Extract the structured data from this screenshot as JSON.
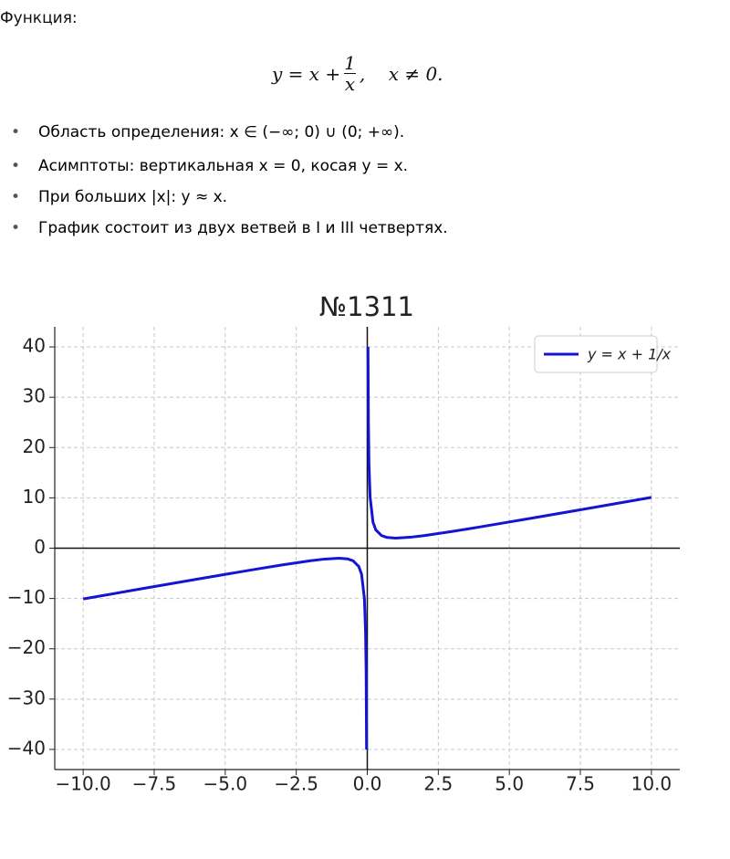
{
  "header": {
    "title": "Функция:"
  },
  "formula": {
    "lhs": "y = x +",
    "numerator": "1",
    "denominator": "x",
    "rest": ",    x ≠ 0."
  },
  "bullets": [
    "Область определения: x ∈ (−∞; 0) ∪ (0; +∞).",
    "Асимптоты: вертикальная x = 0, косая y = x.",
    "При больших |x|: y ≈ x.",
    "График состоит из двух ветвей в I и III четвертях."
  ],
  "chart_data": {
    "type": "line",
    "title": "№1311",
    "x": [
      -10,
      -8,
      -6,
      -4,
      -3,
      -2,
      -1.5,
      -1,
      -0.7,
      -0.5,
      -0.3,
      -0.2,
      -0.1,
      -0.06,
      -0.04,
      -0.025,
      0,
      0.025,
      0.04,
      0.06,
      0.1,
      0.2,
      0.3,
      0.5,
      0.7,
      1,
      1.5,
      2,
      3,
      4,
      6,
      8,
      10
    ],
    "series": [
      {
        "name": "y = x + 1/x",
        "color": "#1414d2",
        "values": [
          -10.1,
          -8.125,
          -6.167,
          -4.25,
          -3.333,
          -2.5,
          -2.167,
          -2,
          -2.129,
          -2.5,
          -3.633,
          -5.2,
          -10.1,
          -16.727,
          -25.04,
          -40.025,
          null,
          40.025,
          25.04,
          16.727,
          10.1,
          5.2,
          3.633,
          2.5,
          2.129,
          2,
          2.167,
          2.5,
          3.333,
          4.25,
          6.167,
          8.125,
          10.1
        ]
      }
    ],
    "xlim": [
      -11,
      11
    ],
    "ylim": [
      -44,
      44
    ],
    "xticks": [
      {
        "value": -10,
        "label": "−10.0"
      },
      {
        "value": -7.5,
        "label": "−7.5"
      },
      {
        "value": -5,
        "label": "−5.0"
      },
      {
        "value": -2.5,
        "label": "−2.5"
      },
      {
        "value": 0,
        "label": "0.0"
      },
      2.5,
      {
        "value": 5,
        "label": "5.0"
      },
      7.5,
      {
        "value": 10,
        "label": "10.0"
      }
    ],
    "yticks": [
      {
        "value": -40,
        "label": "−40"
      },
      {
        "value": -30,
        "label": "−30"
      },
      {
        "value": -20,
        "label": "−20"
      },
      {
        "value": -10,
        "label": "−10"
      },
      0,
      10,
      20,
      30,
      40
    ],
    "grid": true,
    "zero_lines": true,
    "legend": "upper right"
  }
}
